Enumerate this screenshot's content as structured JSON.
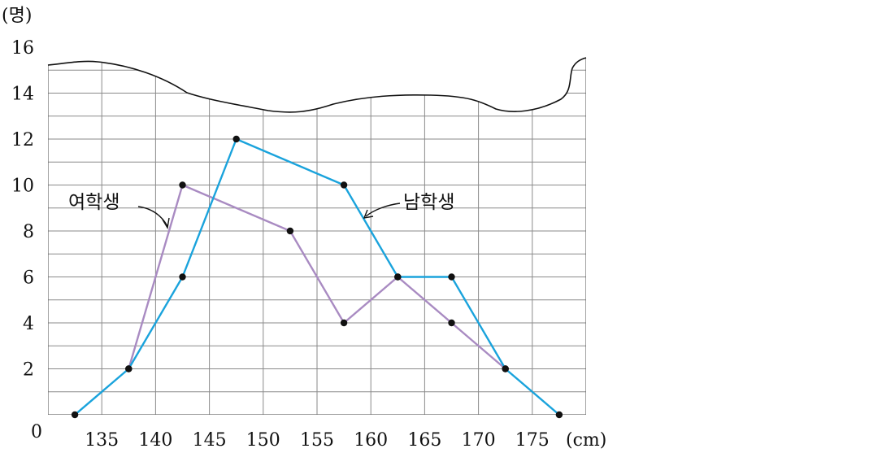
{
  "chart_data": {
    "type": "line",
    "title": "",
    "xlabel": "(cm)",
    "ylabel": "(명)",
    "origin_label": "0",
    "xlim": [
      130,
      180
    ],
    "ylim": [
      0,
      16
    ],
    "x_ticks": [
      "135",
      "140",
      "145",
      "150",
      "155",
      "160",
      "165",
      "170",
      "175"
    ],
    "y_ticks": [
      "2",
      "4",
      "6",
      "8",
      "10",
      "12",
      "14",
      "16"
    ],
    "grid": true,
    "axis_break": true,
    "series": [
      {
        "name": "남학생",
        "color": "#1aa3dc",
        "points": [
          {
            "x": 132.5,
            "y": 0
          },
          {
            "x": 137.5,
            "y": 2
          },
          {
            "x": 142.5,
            "y": 6
          },
          {
            "x": 147.5,
            "y": 12
          },
          {
            "x": 157.5,
            "y": 10
          },
          {
            "x": 162.5,
            "y": 6
          },
          {
            "x": 167.5,
            "y": 6
          },
          {
            "x": 172.5,
            "y": 2
          },
          {
            "x": 177.5,
            "y": 0
          }
        ]
      },
      {
        "name": "여학생",
        "color": "#a98bc2",
        "points": [
          {
            "x": 137.5,
            "y": 2
          },
          {
            "x": 142.5,
            "y": 10
          },
          {
            "x": 152.5,
            "y": 8
          },
          {
            "x": 157.5,
            "y": 4
          },
          {
            "x": 162.5,
            "y": 6
          },
          {
            "x": 167.5,
            "y": 4
          },
          {
            "x": 172.5,
            "y": 2
          }
        ]
      }
    ]
  }
}
